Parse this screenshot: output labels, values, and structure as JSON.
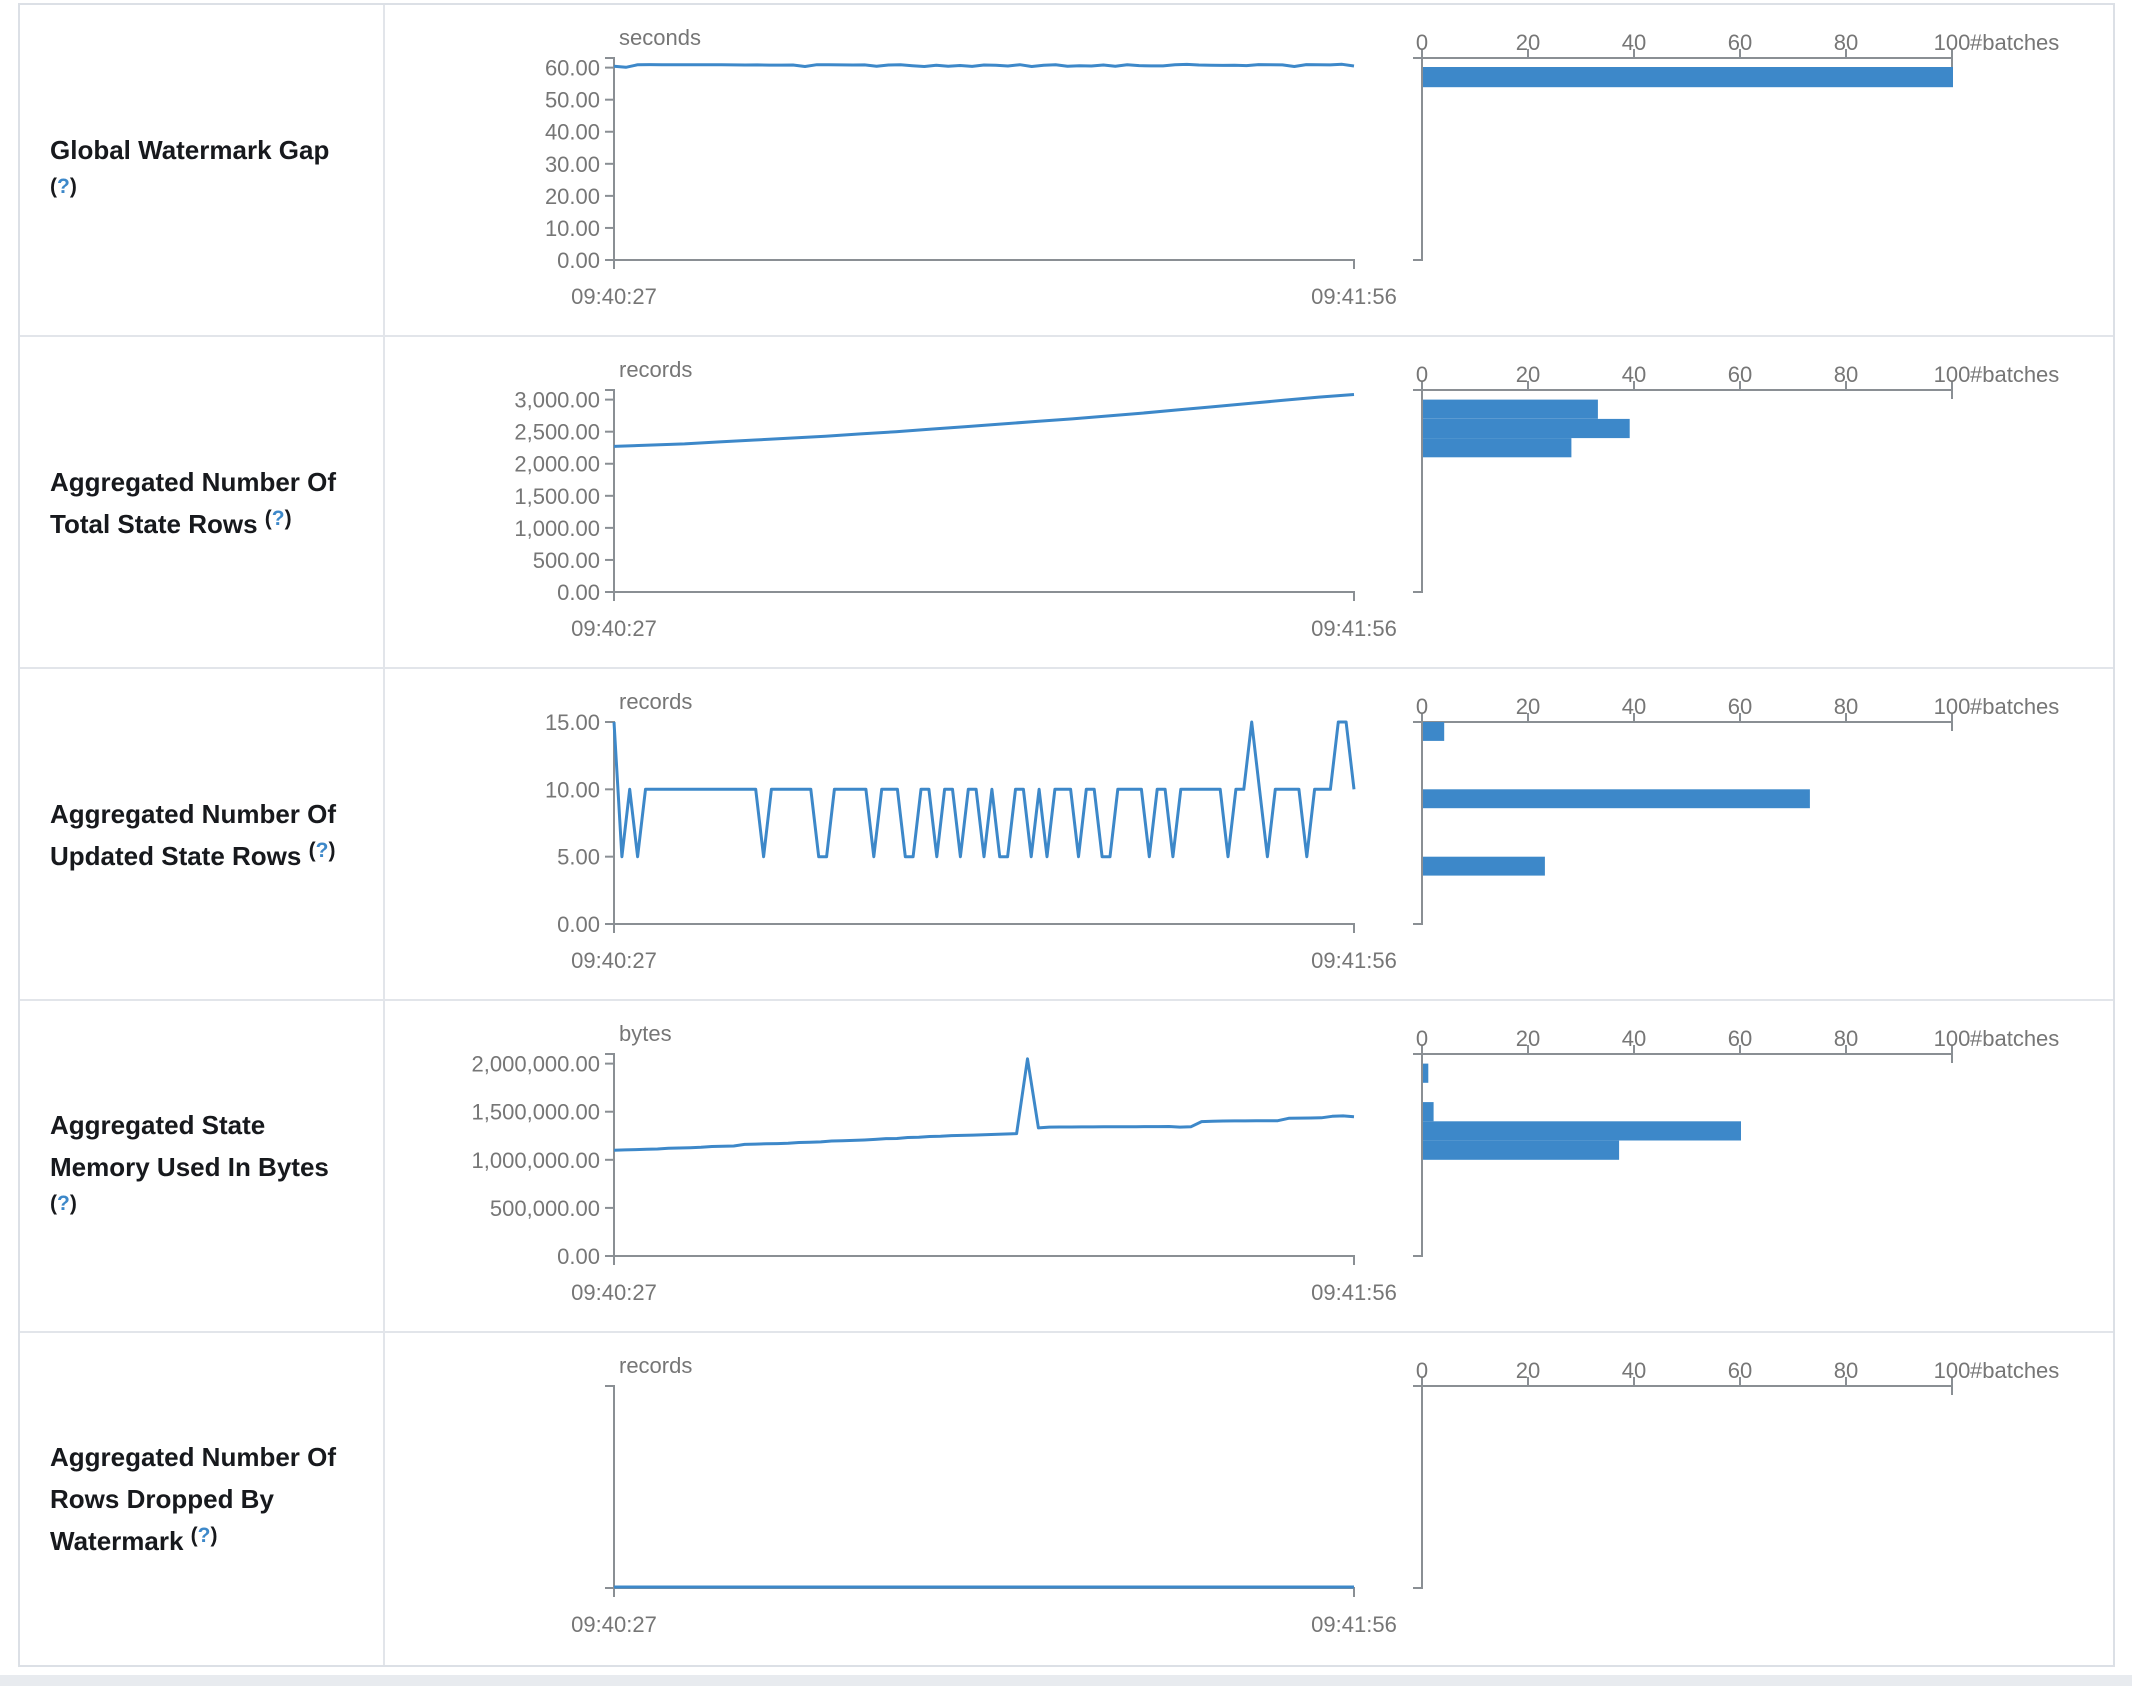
{
  "help": {
    "open": "(",
    "q": "?",
    "close": ")"
  },
  "page": {
    "background": "#ffffff",
    "footer_color": "#e8ebef",
    "border_color": "#e2e5ea"
  },
  "chart_data": {
    "type": "table",
    "x_axis": {
      "start": "09:40:27",
      "end": "09:41:56"
    },
    "hist_axis": {
      "ticks": [
        0,
        20,
        40,
        60,
        80,
        100
      ],
      "max": 100,
      "label": "#batches"
    },
    "colors": {
      "accent": "#3d88c9",
      "axis": "#8a8f94",
      "axis_text": "#767676",
      "label_text": "#17191d"
    },
    "rows": [
      {
        "id": "global-watermark-gap",
        "label": "Global Watermark Gap",
        "unit": "seconds",
        "type": "line+histogram",
        "y_max": 63,
        "y_ticks": [
          {
            "value": 60,
            "label": "60.00"
          },
          {
            "value": 50,
            "label": "50.00"
          },
          {
            "value": 40,
            "label": "40.00"
          },
          {
            "value": 30,
            "label": "30.00"
          },
          {
            "value": 20,
            "label": "20.00"
          },
          {
            "value": 10,
            "label": "10.00"
          },
          {
            "value": 0,
            "label": "0.00"
          }
        ],
        "timeline": [
          60.4,
          60.1,
          60.9,
          60.95,
          60.9,
          60.9,
          60.92,
          60.9,
          60.88,
          60.9,
          60.85,
          60.82,
          60.85,
          60.8,
          60.78,
          60.82,
          60.35,
          60.9,
          60.88,
          60.85,
          60.82,
          60.86,
          60.45,
          60.82,
          60.92,
          60.6,
          60.35,
          60.75,
          60.45,
          60.65,
          60.38,
          60.82,
          60.72,
          60.52,
          60.92,
          60.35,
          60.72,
          60.9,
          60.45,
          60.58,
          60.52,
          60.82,
          60.45,
          60.9,
          60.62,
          60.55,
          60.55,
          60.88,
          61.0,
          60.82,
          60.72,
          60.7,
          60.72,
          60.62,
          60.95,
          60.9,
          60.85,
          60.35,
          60.95,
          60.9,
          60.85,
          61.05,
          60.5
        ],
        "histogram": [
          {
            "lo": 53.9,
            "hi": 60.2,
            "count": 100
          }
        ]
      },
      {
        "id": "aggregated-total-state-rows",
        "label": "Aggregated Number Of Total State Rows",
        "unit": "records",
        "type": "line+histogram",
        "y_max": 3150,
        "y_ticks": [
          {
            "value": 3000,
            "label": "3,000.00"
          },
          {
            "value": 2500,
            "label": "2,500.00"
          },
          {
            "value": 2000,
            "label": "2,000.00"
          },
          {
            "value": 1500,
            "label": "1,500.00"
          },
          {
            "value": 1000,
            "label": "1,000.00"
          },
          {
            "value": 500,
            "label": "500.00"
          },
          {
            "value": 0,
            "label": "0.00"
          }
        ],
        "timeline": [
          2270,
          2290,
          2310,
          2340,
          2370,
          2400,
          2430,
          2465,
          2500,
          2540,
          2580,
          2620,
          2660,
          2700,
          2745,
          2790,
          2840,
          2890,
          2940,
          2990,
          3040,
          3080
        ],
        "histogram": [
          {
            "lo": 2700,
            "hi": 3000,
            "count": 33
          },
          {
            "lo": 2400,
            "hi": 2700,
            "count": 39
          },
          {
            "lo": 2100,
            "hi": 2400,
            "count": 28
          }
        ]
      },
      {
        "id": "aggregated-updated-state-rows",
        "label": "Aggregated Number Of Updated State Rows",
        "unit": "records",
        "type": "line+histogram",
        "y_max": 15,
        "y_ticks": [
          {
            "value": 15,
            "label": "15.00"
          },
          {
            "value": 10,
            "label": "10.00"
          },
          {
            "value": 5,
            "label": "5.00"
          },
          {
            "value": 0,
            "label": "0.00"
          }
        ],
        "timeline": [
          15,
          5,
          10,
          5,
          10,
          10,
          10,
          10,
          10,
          10,
          10,
          10,
          10,
          10,
          10,
          10,
          10,
          10,
          10,
          5,
          10,
          10,
          10,
          10,
          10,
          10,
          5,
          5,
          10,
          10,
          10,
          10,
          10,
          5,
          10,
          10,
          10,
          5,
          5,
          10,
          10,
          5,
          10,
          10,
          5,
          10,
          10,
          5,
          10,
          5,
          5,
          10,
          10,
          5,
          10,
          5,
          10,
          10,
          10,
          5,
          10,
          10,
          5,
          5,
          10,
          10,
          10,
          10,
          5,
          10,
          10,
          5,
          10,
          10,
          10,
          10,
          10,
          10,
          5,
          10,
          10,
          15,
          10,
          5,
          10,
          10,
          10,
          10,
          5,
          10,
          10,
          10,
          15,
          15,
          10
        ],
        "histogram": [
          {
            "lo": 13.6,
            "hi": 15.0,
            "count": 4
          },
          {
            "lo": 8.6,
            "hi": 10.0,
            "count": 73
          },
          {
            "lo": 3.6,
            "hi": 5.0,
            "count": 23
          }
        ]
      },
      {
        "id": "aggregated-state-memory",
        "label": "Aggregated State Memory Used In Bytes",
        "unit": "bytes",
        "type": "line+histogram",
        "y_max": 2100000,
        "y_ticks": [
          {
            "value": 2000000,
            "label": "2,000,000.00"
          },
          {
            "value": 1500000,
            "label": "1,500,000.00"
          },
          {
            "value": 1000000,
            "label": "1,000,000.00"
          },
          {
            "value": 500000,
            "label": "500,000.00"
          },
          {
            "value": 0,
            "label": "0.00"
          }
        ],
        "timeline": [
          1100000,
          1103000,
          1106000,
          1110000,
          1112000,
          1120000,
          1123000,
          1126000,
          1130000,
          1138000,
          1141000,
          1144000,
          1160000,
          1163000,
          1166000,
          1169000,
          1172000,
          1180000,
          1183000,
          1186000,
          1196000,
          1199000,
          1202000,
          1206000,
          1212000,
          1220000,
          1222000,
          1232000,
          1234000,
          1242000,
          1244000,
          1252000,
          1254000,
          1257000,
          1260000,
          1264000,
          1268000,
          1272000,
          2050000,
          1332000,
          1340000,
          1341000,
          1341000,
          1342000,
          1342000,
          1343000,
          1343000,
          1344000,
          1344000,
          1345000,
          1345000,
          1346000,
          1340000,
          1343000,
          1397000,
          1401000,
          1403000,
          1404000,
          1405000,
          1406000,
          1406000,
          1407000,
          1432000,
          1434000,
          1435000,
          1437000,
          1452000,
          1457000,
          1448000
        ],
        "histogram": [
          {
            "lo": 1800000,
            "hi": 2000000,
            "count": 1
          },
          {
            "lo": 1400000,
            "hi": 1600000,
            "count": 2
          },
          {
            "lo": 1200000,
            "hi": 1400000,
            "count": 60
          },
          {
            "lo": 1000000,
            "hi": 1200000,
            "count": 37
          }
        ]
      },
      {
        "id": "aggregated-rows-dropped-by-watermark",
        "label": "Aggregated Number Of Rows Dropped By Watermark",
        "unit": "records",
        "type": "line+histogram",
        "y_max": 1,
        "y_ticks": [],
        "timeline": [
          0,
          0
        ],
        "histogram": []
      }
    ]
  }
}
